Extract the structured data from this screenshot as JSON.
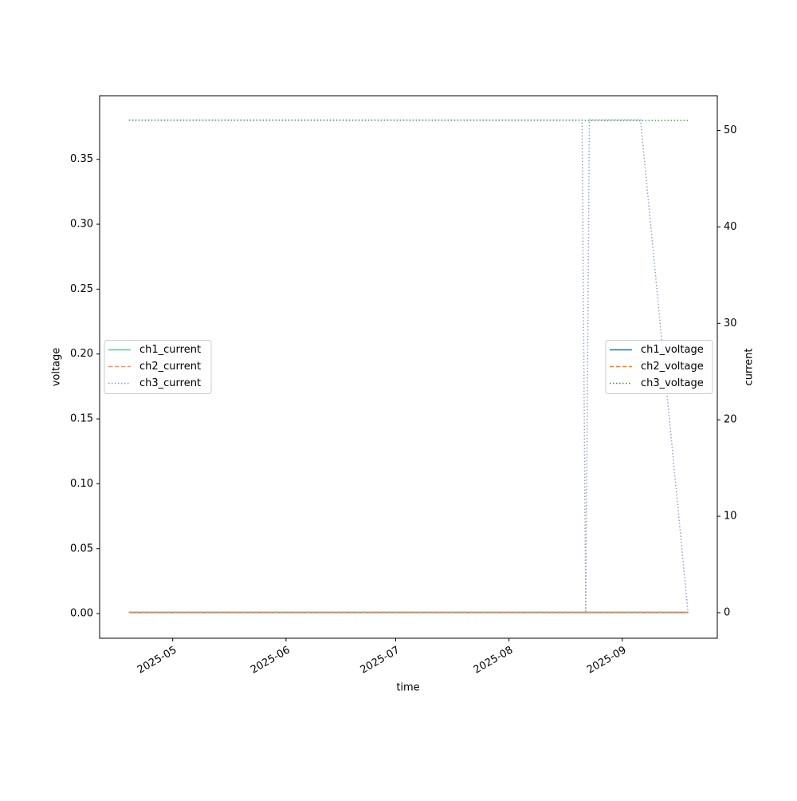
{
  "chart_data": {
    "type": "line",
    "x_label": "time",
    "y_label": "voltage",
    "y2_label": "current",
    "x": [
      "2025-04-19",
      "2025-08-21",
      "2025-08-22",
      "2025-08-23",
      "2025-09-06",
      "2025-09-19"
    ],
    "xlim": [
      "2025-04-11",
      "2025-09-27"
    ],
    "xticks": [
      {
        "value": "2025-05-01",
        "label": "2025-05"
      },
      {
        "value": "2025-06-01",
        "label": "2025-06"
      },
      {
        "value": "2025-07-01",
        "label": "2025-07"
      },
      {
        "value": "2025-08-01",
        "label": "2025-08"
      },
      {
        "value": "2025-09-01",
        "label": "2025-09"
      }
    ],
    "ylim": [
      -0.019,
      0.399
    ],
    "yticks": [
      {
        "value": 0,
        "label": "0.00"
      },
      {
        "value": 0.05,
        "label": "0.05"
      },
      {
        "value": 0.1,
        "label": "0.10"
      },
      {
        "value": 0.15,
        "label": "0.15"
      },
      {
        "value": 0.2,
        "label": "0.20"
      },
      {
        "value": 0.25,
        "label": "0.25"
      },
      {
        "value": 0.3,
        "label": "0.30"
      },
      {
        "value": 0.35,
        "label": "0.35"
      }
    ],
    "y2lim": [
      -2.65,
      53.6
    ],
    "y2ticks": [
      0,
      10,
      20,
      30,
      40,
      50
    ],
    "legend": {
      "y": "center right",
      "y2": "center left"
    },
    "series": [
      {
        "name": "ch1_voltage",
        "color": "#1f77b4",
        "dash": "solid",
        "values": [
          0.001,
          0.001,
          0.001,
          0.001,
          0.001,
          0.001
        ]
      },
      {
        "name": "ch2_voltage",
        "color": "#ff7f0e",
        "dash": "dashed",
        "values": [
          0.001,
          0.001,
          0.001,
          0.001,
          0.001,
          0.001
        ]
      },
      {
        "name": "ch3_voltage",
        "color": "#2ca02c",
        "dash": "dotted",
        "values": [
          0.38,
          0.38,
          0.38,
          0.38,
          0.38,
          0.38
        ]
      },
      {
        "name": "ch1_current",
        "color": "#66c2a5",
        "dash": "solid",
        "axis": "y2",
        "values": [
          0,
          0,
          0,
          0,
          0,
          0
        ]
      },
      {
        "name": "ch2_current",
        "color": "#fc8d62",
        "dash": "dashed",
        "axis": "y2",
        "values": [
          0,
          0,
          0,
          0,
          0,
          0
        ]
      },
      {
        "name": "ch3_current",
        "color": "#8da0cb",
        "dash": "dotted",
        "axis": "y2",
        "values": [
          51.1,
          51.1,
          0,
          51.1,
          51.1,
          0
        ]
      }
    ]
  }
}
